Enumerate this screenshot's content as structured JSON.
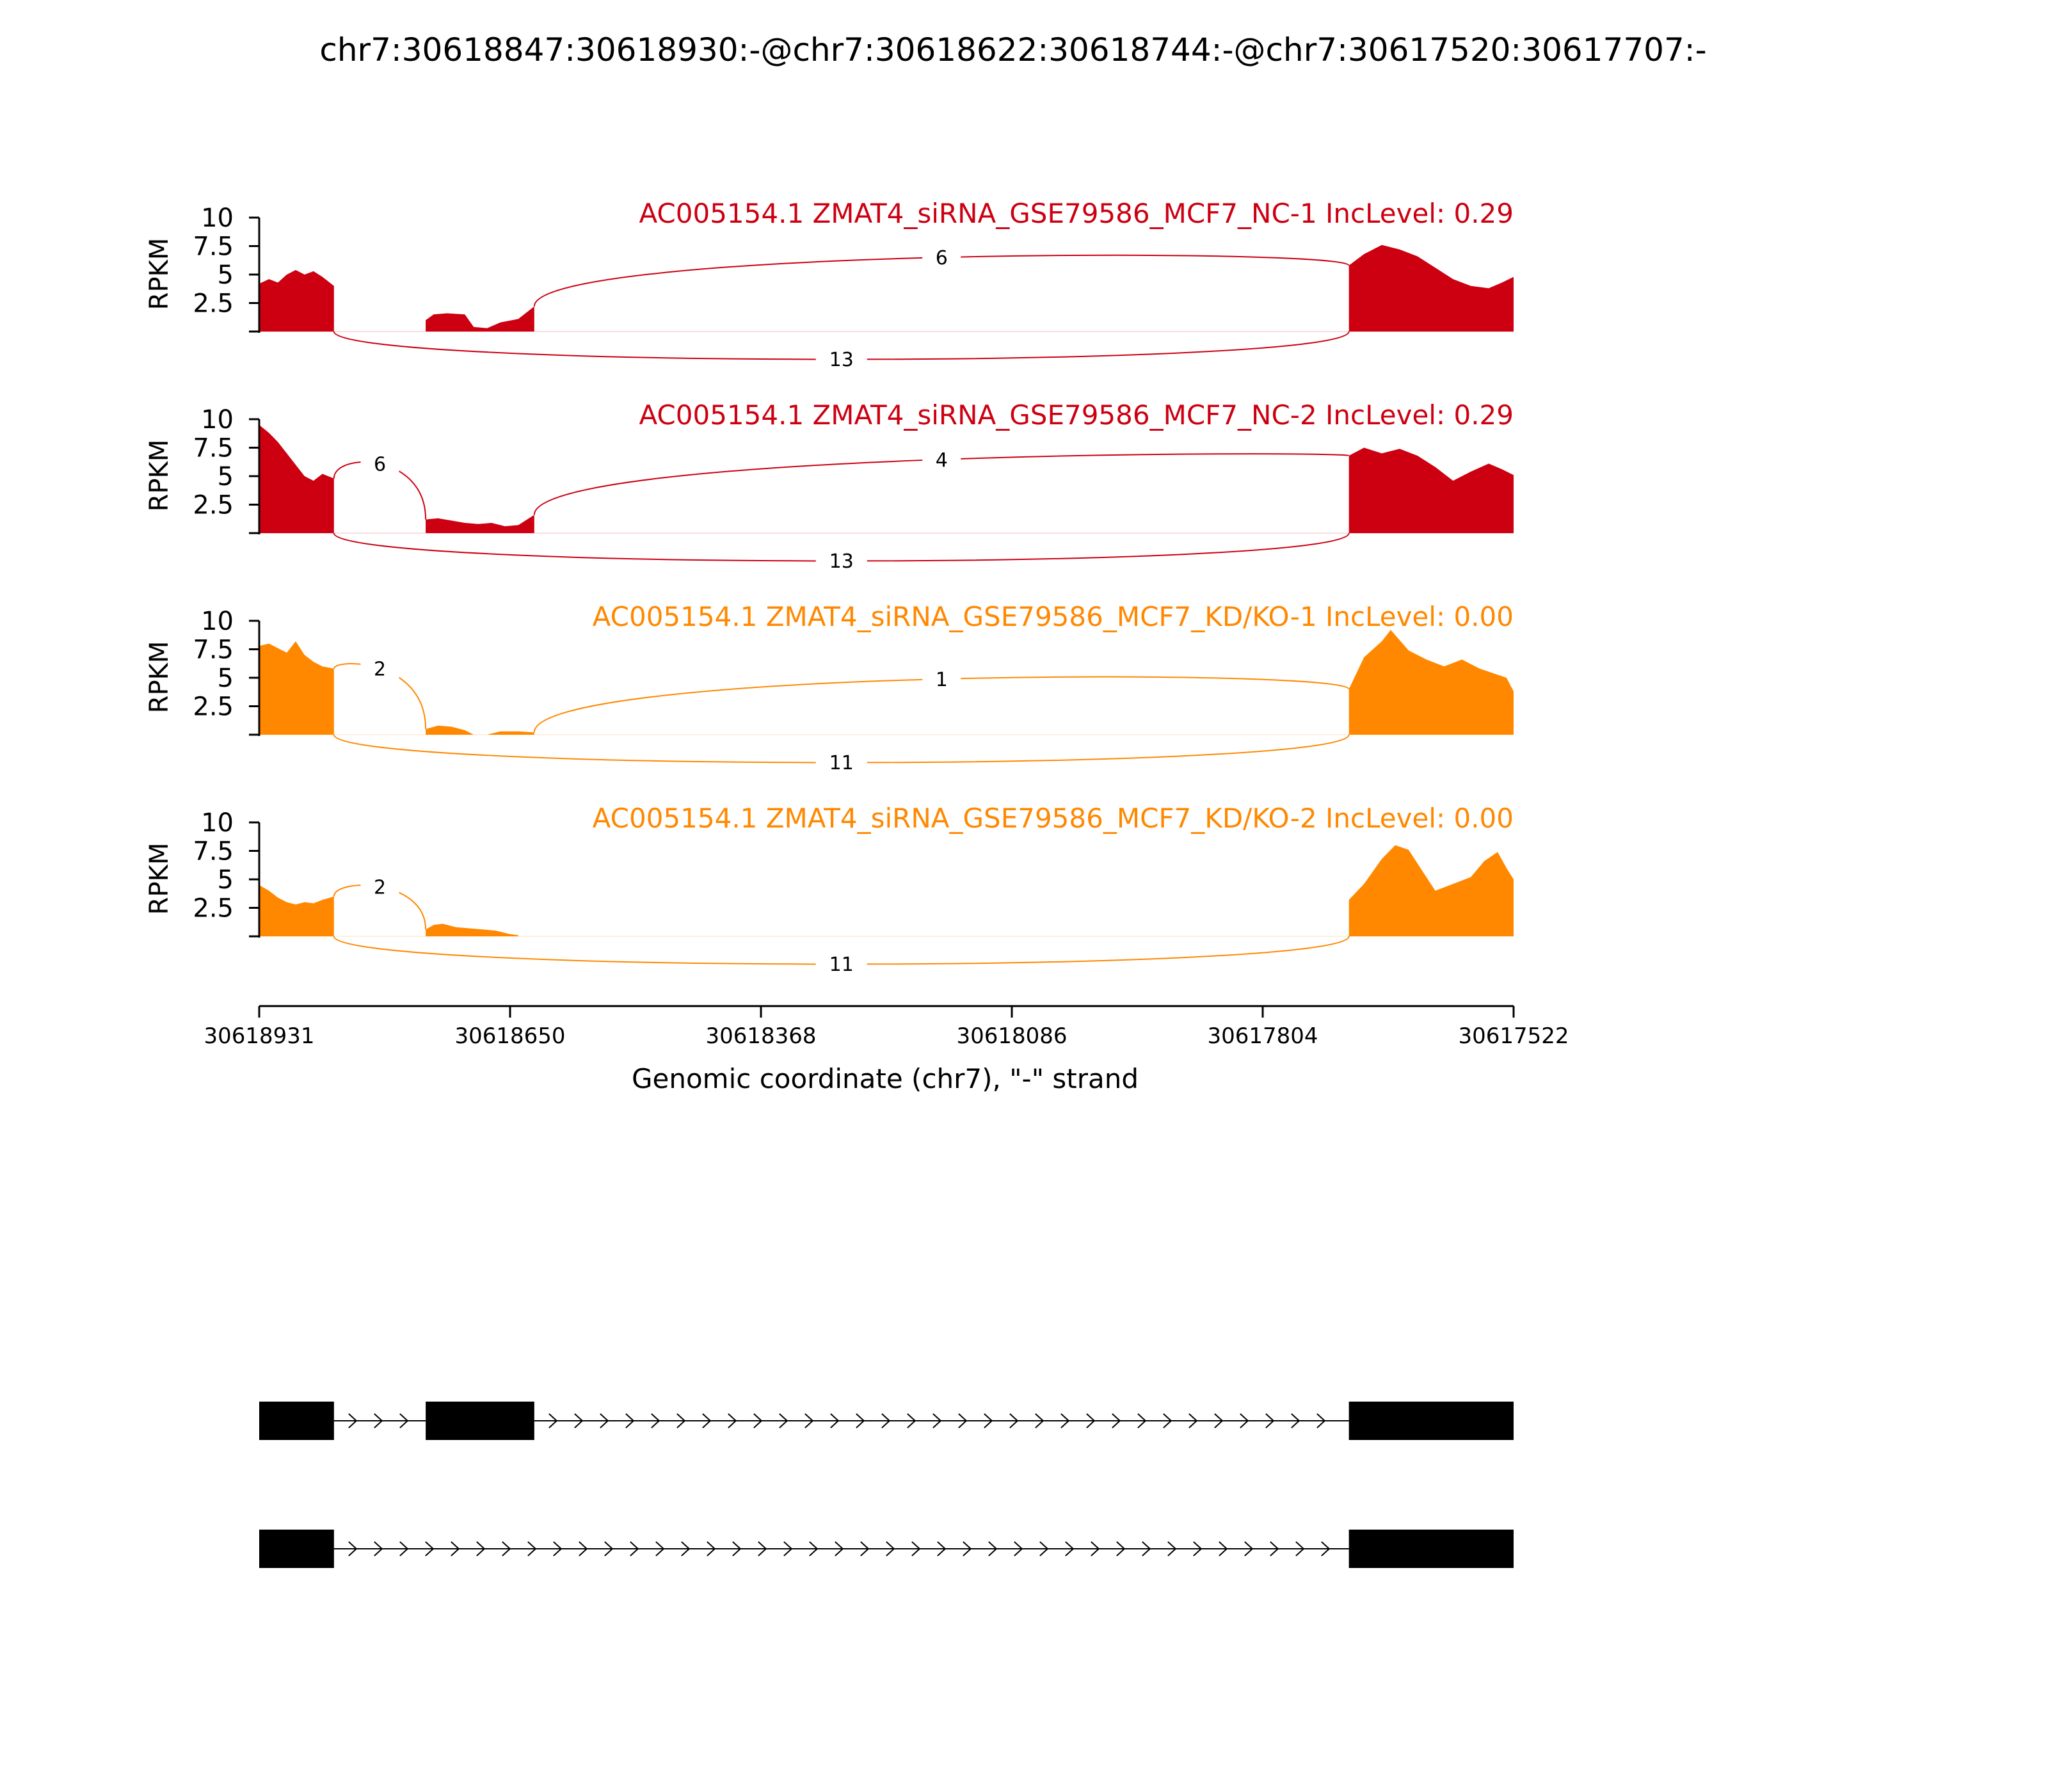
{
  "colors": {
    "nc": "#cc0011",
    "kd": "#ff8800",
    "axis": "#000000",
    "gene": "#000000"
  },
  "chart_data": {
    "type": "area",
    "title": "chr7:30618847:30618930:-@chr7:30618622:30618744:-@chr7:30617520:30617707:-",
    "xlabel": "Genomic coordinate (chr7), \"-\" strand",
    "ylabel": "RPKM",
    "xlim": [
      30618931,
      30617522
    ],
    "ylim": [
      0,
      10
    ],
    "x_ticks": [
      "30618931",
      "30618650",
      "30618368",
      "30618086",
      "30617804",
      "30617522"
    ],
    "y_ticks": [
      "2.5",
      "5",
      "7.5",
      "10"
    ],
    "exons": [
      [
        30618931,
        30618847
      ],
      [
        30618744,
        30618622
      ],
      [
        30617707,
        30617522
      ]
    ],
    "tracks": [
      {
        "title": "AC005154.1 ZMAT4_siRNA_GSE79586_MCF7_NC-1 IncLevel: 0.29",
        "color": "nc",
        "coverage": [
          [
            [
              30618931,
              4.2
            ],
            [
              30618920,
              4.6
            ],
            [
              30618910,
              4.3
            ],
            [
              30618900,
              5.0
            ],
            [
              30618890,
              5.4
            ],
            [
              30618880,
              5.0
            ],
            [
              30618870,
              5.3
            ],
            [
              30618860,
              4.8
            ],
            [
              30618847,
              4.0
            ]
          ],
          [
            [
              30618744,
              1.0
            ],
            [
              30618735,
              1.5
            ],
            [
              30618720,
              1.6
            ],
            [
              30618700,
              1.5
            ],
            [
              30618690,
              0.4
            ],
            [
              30618675,
              0.3
            ],
            [
              30618660,
              0.8
            ],
            [
              30618640,
              1.1
            ],
            [
              30618622,
              2.2
            ]
          ],
          [
            [
              30617707,
              5.8
            ],
            [
              30617690,
              6.8
            ],
            [
              30617670,
              7.6
            ],
            [
              30617650,
              7.2
            ],
            [
              30617630,
              6.6
            ],
            [
              30617610,
              5.6
            ],
            [
              30617590,
              4.6
            ],
            [
              30617570,
              4.0
            ],
            [
              30617550,
              3.8
            ],
            [
              30617535,
              4.3
            ],
            [
              30617522,
              4.8
            ]
          ]
        ],
        "junctions": [
          {
            "from": 30618622,
            "to": 30617707,
            "count": "6",
            "side": "top",
            "y0": 2.2,
            "y1": 5.8,
            "peak": 7.2
          },
          {
            "from": 30618847,
            "to": 30617707,
            "count": "13",
            "side": "bottom"
          }
        ]
      },
      {
        "title": "AC005154.1 ZMAT4_siRNA_GSE79586_MCF7_NC-2 IncLevel: 0.29",
        "color": "nc",
        "coverage": [
          [
            [
              30618931,
              9.5
            ],
            [
              30618920,
              8.8
            ],
            [
              30618910,
              8.0
            ],
            [
              30618900,
              7.0
            ],
            [
              30618890,
              6.0
            ],
            [
              30618880,
              5.0
            ],
            [
              30618870,
              4.6
            ],
            [
              30618860,
              5.2
            ],
            [
              30618847,
              4.8
            ]
          ],
          [
            [
              30618744,
              1.2
            ],
            [
              30618730,
              1.3
            ],
            [
              30618715,
              1.1
            ],
            [
              30618700,
              0.9
            ],
            [
              30618685,
              0.8
            ],
            [
              30618670,
              0.9
            ],
            [
              30618655,
              0.6
            ],
            [
              30618640,
              0.7
            ],
            [
              30618622,
              1.6
            ]
          ],
          [
            [
              30617707,
              6.8
            ],
            [
              30617690,
              7.5
            ],
            [
              30617670,
              7.0
            ],
            [
              30617650,
              7.4
            ],
            [
              30617630,
              6.8
            ],
            [
              30617610,
              5.8
            ],
            [
              30617590,
              4.6
            ],
            [
              30617570,
              5.4
            ],
            [
              30617550,
              6.1
            ],
            [
              30617535,
              5.6
            ],
            [
              30617522,
              5.1
            ]
          ]
        ],
        "junctions": [
          {
            "from": 30618847,
            "to": 30618744,
            "count": "6",
            "side": "top",
            "y0": 4.8,
            "y1": 1.2,
            "peak": 7.3
          },
          {
            "from": 30618622,
            "to": 30617707,
            "count": "4",
            "side": "top",
            "y0": 1.6,
            "y1": 6.8,
            "peak": 6.6
          },
          {
            "from": 30618847,
            "to": 30617707,
            "count": "13",
            "side": "bottom"
          }
        ]
      },
      {
        "title": "AC005154.1 ZMAT4_siRNA_GSE79586_MCF7_KD/KO-1 IncLevel: 0.00",
        "color": "kd",
        "coverage": [
          [
            [
              30618931,
              7.8
            ],
            [
              30618920,
              8.0
            ],
            [
              30618910,
              7.6
            ],
            [
              30618900,
              7.2
            ],
            [
              30618890,
              8.2
            ],
            [
              30618880,
              7.0
            ],
            [
              30618870,
              6.4
            ],
            [
              30618860,
              6.0
            ],
            [
              30618847,
              5.8
            ]
          ],
          [
            [
              30618744,
              0.5
            ],
            [
              30618730,
              0.8
            ],
            [
              30618715,
              0.7
            ],
            [
              30618700,
              0.4
            ],
            [
              30618690,
              0.0
            ],
            [
              30618675,
              0.0
            ],
            [
              30618660,
              0.3
            ],
            [
              30618640,
              0.3
            ],
            [
              30618622,
              0.2
            ]
          ],
          [
            [
              30617707,
              4.0
            ],
            [
              30617690,
              6.8
            ],
            [
              30617670,
              8.2
            ],
            [
              30617660,
              9.2
            ],
            [
              30617640,
              7.4
            ],
            [
              30617620,
              6.6
            ],
            [
              30617600,
              6.0
            ],
            [
              30617580,
              6.6
            ],
            [
              30617560,
              5.8
            ],
            [
              30617545,
              5.4
            ],
            [
              30617530,
              5.0
            ],
            [
              30617522,
              3.8
            ]
          ]
        ],
        "junctions": [
          {
            "from": 30618847,
            "to": 30618744,
            "count": "2",
            "side": "top",
            "y0": 5.8,
            "y1": 0.5,
            "peak": 6.3
          },
          {
            "from": 30618622,
            "to": 30617707,
            "count": "1",
            "side": "top",
            "y0": 0.2,
            "y1": 4.0,
            "peak": 5.8
          },
          {
            "from": 30618847,
            "to": 30617707,
            "count": "11",
            "side": "bottom"
          }
        ]
      },
      {
        "title": "AC005154.1 ZMAT4_siRNA_GSE79586_MCF7_KD/KO-2 IncLevel: 0.00",
        "color": "kd",
        "coverage": [
          [
            [
              30618931,
              4.5
            ],
            [
              30618920,
              4.0
            ],
            [
              30618910,
              3.4
            ],
            [
              30618900,
              3.0
            ],
            [
              30618890,
              2.8
            ],
            [
              30618880,
              3.0
            ],
            [
              30618870,
              2.9
            ],
            [
              30618860,
              3.2
            ],
            [
              30618847,
              3.5
            ]
          ],
          [
            [
              30618744,
              0.6
            ],
            [
              30618735,
              1.0
            ],
            [
              30618725,
              1.1
            ],
            [
              30618710,
              0.8
            ],
            [
              30618695,
              0.7
            ],
            [
              30618680,
              0.6
            ],
            [
              30618665,
              0.5
            ],
            [
              30618650,
              0.2
            ],
            [
              30618640,
              0.1
            ]
          ],
          [
            [
              30617707,
              3.2
            ],
            [
              30617690,
              4.6
            ],
            [
              30617670,
              6.8
            ],
            [
              30617655,
              8.0
            ],
            [
              30617640,
              7.6
            ],
            [
              30617625,
              5.8
            ],
            [
              30617610,
              4.0
            ],
            [
              30617590,
              4.6
            ],
            [
              30617570,
              5.2
            ],
            [
              30617555,
              6.6
            ],
            [
              30617540,
              7.4
            ],
            [
              30617530,
              6.0
            ],
            [
              30617522,
              5.0
            ]
          ]
        ],
        "junctions": [
          {
            "from": 30618847,
            "to": 30618744,
            "count": "2",
            "side": "top",
            "y0": 3.5,
            "y1": 0.6,
            "peak": 5.0
          },
          {
            "from": 30618847,
            "to": 30617707,
            "count": "11",
            "side": "bottom"
          }
        ]
      }
    ],
    "isoforms": [
      {
        "exons": [
          [
            30618931,
            30618847
          ],
          [
            30618744,
            30618622
          ],
          [
            30617707,
            30617522
          ]
        ]
      },
      {
        "exons": [
          [
            30618931,
            30618847
          ],
          [
            30617707,
            30617522
          ]
        ]
      }
    ]
  }
}
